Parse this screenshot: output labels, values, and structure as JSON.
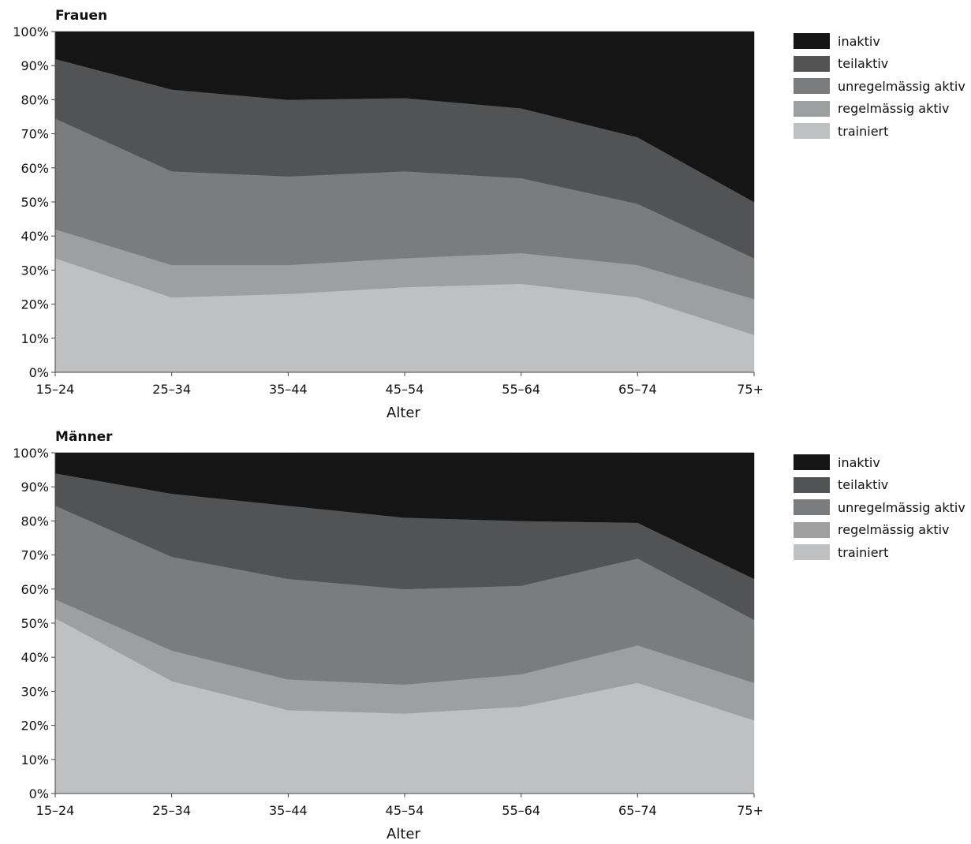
{
  "chart_data": [
    {
      "type": "area",
      "title": "Frauen",
      "xlabel": "Alter",
      "ylabel": "",
      "categories": [
        "15–24",
        "25–34",
        "35–44",
        "45–54",
        "55–64",
        "65–74",
        "75+"
      ],
      "y_ticks": [
        "0%",
        "10%",
        "20%",
        "30%",
        "40%",
        "50%",
        "60%",
        "70%",
        "80%",
        "90%",
        "100%"
      ],
      "ylim": [
        0,
        100
      ],
      "stacked": true,
      "legend_position": "right",
      "series": [
        {
          "name": "trainiert",
          "color": "#bfc0c2",
          "values": [
            33.5,
            22,
            23,
            25,
            26,
            22,
            11
          ]
        },
        {
          "name": "regelmässig aktiv",
          "color": "#9e9fa1",
          "values": [
            8.5,
            9.5,
            8.5,
            8.5,
            9,
            9.5,
            10.5
          ]
        },
        {
          "name": "unregelmässig aktiv",
          "color": "#7b7c7e",
          "values": [
            32.5,
            27.5,
            26,
            25.5,
            22,
            18,
            12
          ]
        },
        {
          "name": "teilaktiv",
          "color": "#525355",
          "values": [
            17.5,
            24,
            22.5,
            21.5,
            20.5,
            19.5,
            16.5
          ]
        },
        {
          "name": "inaktiv",
          "color": "#151515",
          "values": [
            8,
            17,
            20,
            19.5,
            22.5,
            31,
            50
          ]
        }
      ]
    },
    {
      "type": "area",
      "title": "Männer",
      "xlabel": "Alter",
      "ylabel": "",
      "categories": [
        "15–24",
        "25–34",
        "35–44",
        "45–54",
        "55–64",
        "65–74",
        "75+"
      ],
      "y_ticks": [
        "0%",
        "10%",
        "20%",
        "30%",
        "40%",
        "50%",
        "60%",
        "70%",
        "80%",
        "90%",
        "100%"
      ],
      "ylim": [
        0,
        100
      ],
      "stacked": true,
      "legend_position": "right",
      "series": [
        {
          "name": "trainiert",
          "color": "#bfc0c2",
          "values": [
            51.5,
            33,
            24.5,
            23.5,
            25.5,
            32.5,
            21.5
          ]
        },
        {
          "name": "regelmässig aktiv",
          "color": "#9e9fa1",
          "values": [
            5.5,
            9,
            9,
            8.5,
            9.5,
            11,
            11
          ]
        },
        {
          "name": "unregelmässig aktiv",
          "color": "#7b7c7e",
          "values": [
            27.5,
            27.5,
            29.5,
            28,
            26,
            25.5,
            18.5
          ]
        },
        {
          "name": "teilaktiv",
          "color": "#525355",
          "values": [
            9.5,
            18.5,
            21.5,
            21,
            19,
            10.5,
            12
          ]
        },
        {
          "name": "inaktiv",
          "color": "#151515",
          "values": [
            6,
            12,
            15.5,
            19,
            20,
            20.5,
            37
          ]
        }
      ]
    }
  ]
}
